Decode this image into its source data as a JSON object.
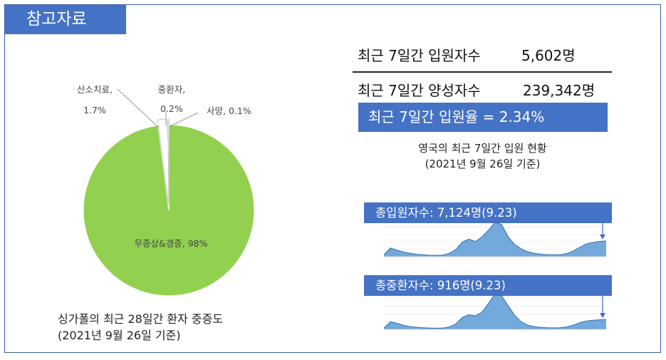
{
  "header": {
    "title": "참고자료"
  },
  "singapore": {
    "caption_line1": "싱가폴의 최근 28일간 환자 중증도",
    "caption_line2": "(2021년 9월 26일 기준)"
  },
  "uk": {
    "admissions_label": "최근 7일간 입원자수",
    "admissions_value": "5,602명",
    "positives_label": "최근 7일간 양성자수",
    "positives_value": "239,342명",
    "rate_text": "최근 7일간 입원율 = 2.34%",
    "caption_line1": "영국의 최근 7일간 입원 현황",
    "caption_line2": "(2021년 9월 26일 기준)",
    "trend_hospital_title": "총입원자수: 7,124명(9.23)",
    "trend_critical_title": "총중환자수: 916명(9.23)"
  },
  "colors": {
    "mild": "#92d050",
    "icu": "#c55a11",
    "oxygen": "#ffffff",
    "death": "#ffffff",
    "accent": "#4472c4",
    "area": "#5b9bd5"
  },
  "chart_data": [
    {
      "type": "pie",
      "slices": [
        {
          "label": "무증상&경증, 98%",
          "value": 98,
          "color": "#92d050"
        },
        {
          "label": "산소치료, 1.7%",
          "value": 1.7,
          "color": "#ffffff"
        },
        {
          "label": "중환자, 0.2%",
          "value": 0.2,
          "color": "#c55a11"
        },
        {
          "label": "사망, 0.1%",
          "value": 0.1,
          "color": "#ffffff"
        }
      ]
    },
    {
      "type": "area",
      "title": "총입원자수: 7,124명(9.23)",
      "values": [
        800,
        3900,
        2900,
        2100,
        1500,
        1100,
        800,
        650,
        600,
        700,
        1500,
        3200,
        6600,
        7900,
        6800,
        8900,
        12000,
        15500,
        14500,
        9000,
        5500,
        3500,
        2200,
        1500,
        1100,
        900,
        850,
        900,
        1400,
        2600,
        4300,
        5800,
        6400,
        6900,
        7124
      ]
    },
    {
      "type": "area",
      "title": "총중환자수: 916명(9.23)",
      "values": [
        120,
        700,
        560,
        380,
        260,
        200,
        150,
        120,
        110,
        120,
        220,
        500,
        1100,
        1350,
        1250,
        1600,
        2400,
        3300,
        3100,
        2200,
        1300,
        700,
        400,
        250,
        180,
        150,
        140,
        150,
        230,
        400,
        620,
        780,
        840,
        880,
        916
      ]
    }
  ]
}
